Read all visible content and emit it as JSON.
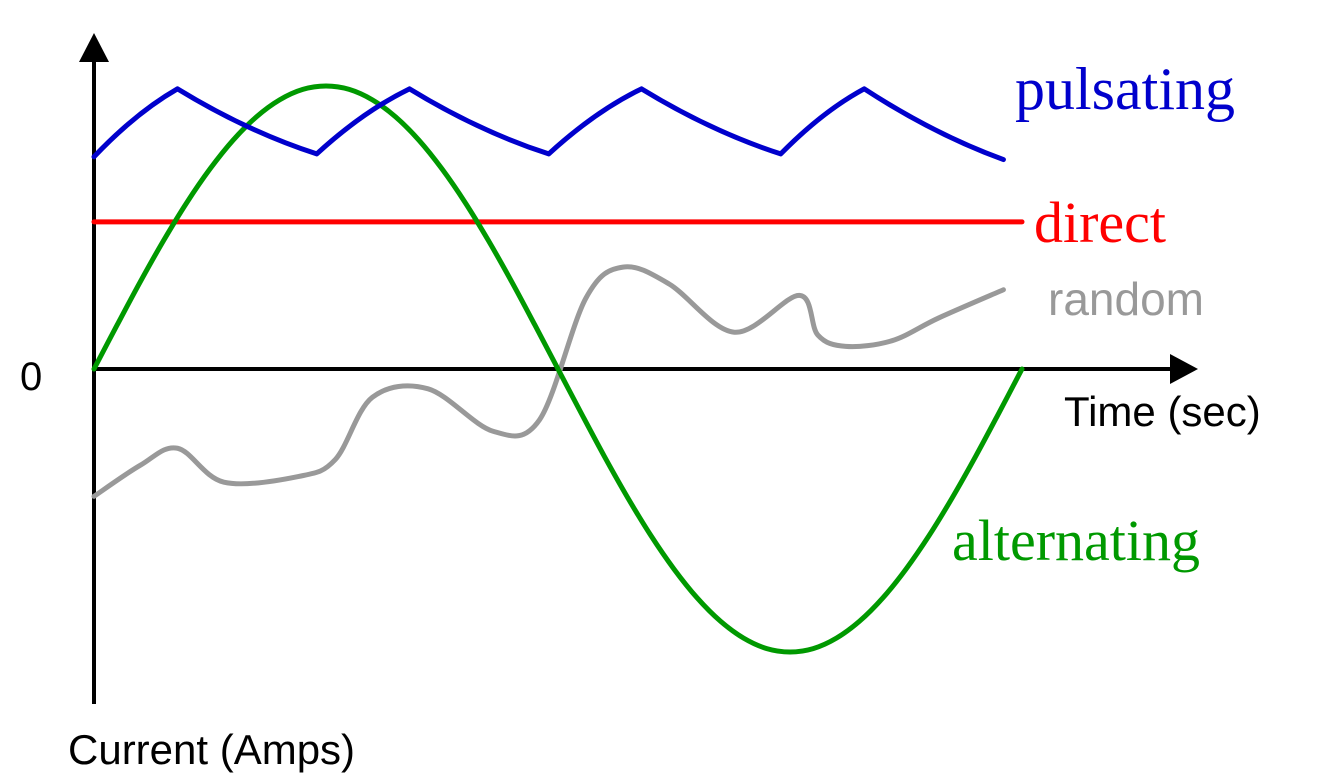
{
  "chart_data": {
    "type": "line",
    "xlabel": "Time (sec)",
    "ylabel": "Current (Amps)",
    "y_tick_labels": [
      "0"
    ],
    "grid": false,
    "colors": {
      "axis": "#000000",
      "pulsating": "#0000cc",
      "direct": "#ff0000",
      "random": "#999999",
      "alternating": "#009900"
    },
    "series": [
      {
        "name": "pulsating",
        "label_style": "serif",
        "x": [
          0,
          0.09,
          0.24,
          0.34,
          0.49,
          0.59,
          0.74,
          0.83,
          0.98
        ],
        "y": [
          0.75,
          0.99,
          0.76,
          0.99,
          0.76,
          0.99,
          0.76,
          0.99,
          0.74
        ]
      },
      {
        "name": "direct",
        "label_style": "serif",
        "x": [
          0,
          1
        ],
        "y": [
          0.52,
          0.52
        ]
      },
      {
        "name": "random",
        "label_style": "sans",
        "x": [
          0,
          0.05,
          0.09,
          0.14,
          0.22,
          0.26,
          0.3,
          0.36,
          0.43,
          0.48,
          0.53,
          0.57,
          0.62,
          0.69,
          0.76,
          0.78,
          0.81,
          0.86,
          0.91,
          0.98
        ],
        "y": [
          -0.45,
          -0.34,
          -0.28,
          -0.4,
          -0.38,
          -0.32,
          -0.1,
          -0.07,
          -0.22,
          -0.18,
          0.25,
          0.36,
          0.3,
          0.13,
          0.26,
          0.12,
          0.08,
          0.1,
          0.18,
          0.28
        ]
      },
      {
        "name": "alternating",
        "label_style": "serif",
        "x": [
          0,
          0.025,
          0.05,
          0.075,
          0.1,
          0.125,
          0.15,
          0.175,
          0.2,
          0.225,
          0.25,
          0.275,
          0.3,
          0.325,
          0.35,
          0.375,
          0.4,
          0.425,
          0.45,
          0.475,
          0.5,
          0.525,
          0.55,
          0.575,
          0.6,
          0.625,
          0.65,
          0.675,
          0.7,
          0.725,
          0.75,
          0.775,
          0.8,
          0.825,
          0.85,
          0.875,
          0.9,
          0.925,
          0.95,
          0.975,
          1
        ],
        "y": [
          0,
          0.156,
          0.309,
          0.454,
          0.588,
          0.707,
          0.809,
          0.891,
          0.951,
          0.988,
          1,
          0.988,
          0.951,
          0.891,
          0.809,
          0.707,
          0.588,
          0.454,
          0.309,
          0.156,
          0,
          -0.156,
          -0.309,
          -0.454,
          -0.588,
          -0.707,
          -0.809,
          -0.891,
          -0.951,
          -0.988,
          -1,
          -0.988,
          -0.951,
          -0.891,
          -0.809,
          -0.707,
          -0.588,
          -0.454,
          -0.309,
          -0.156,
          0
        ]
      }
    ]
  }
}
